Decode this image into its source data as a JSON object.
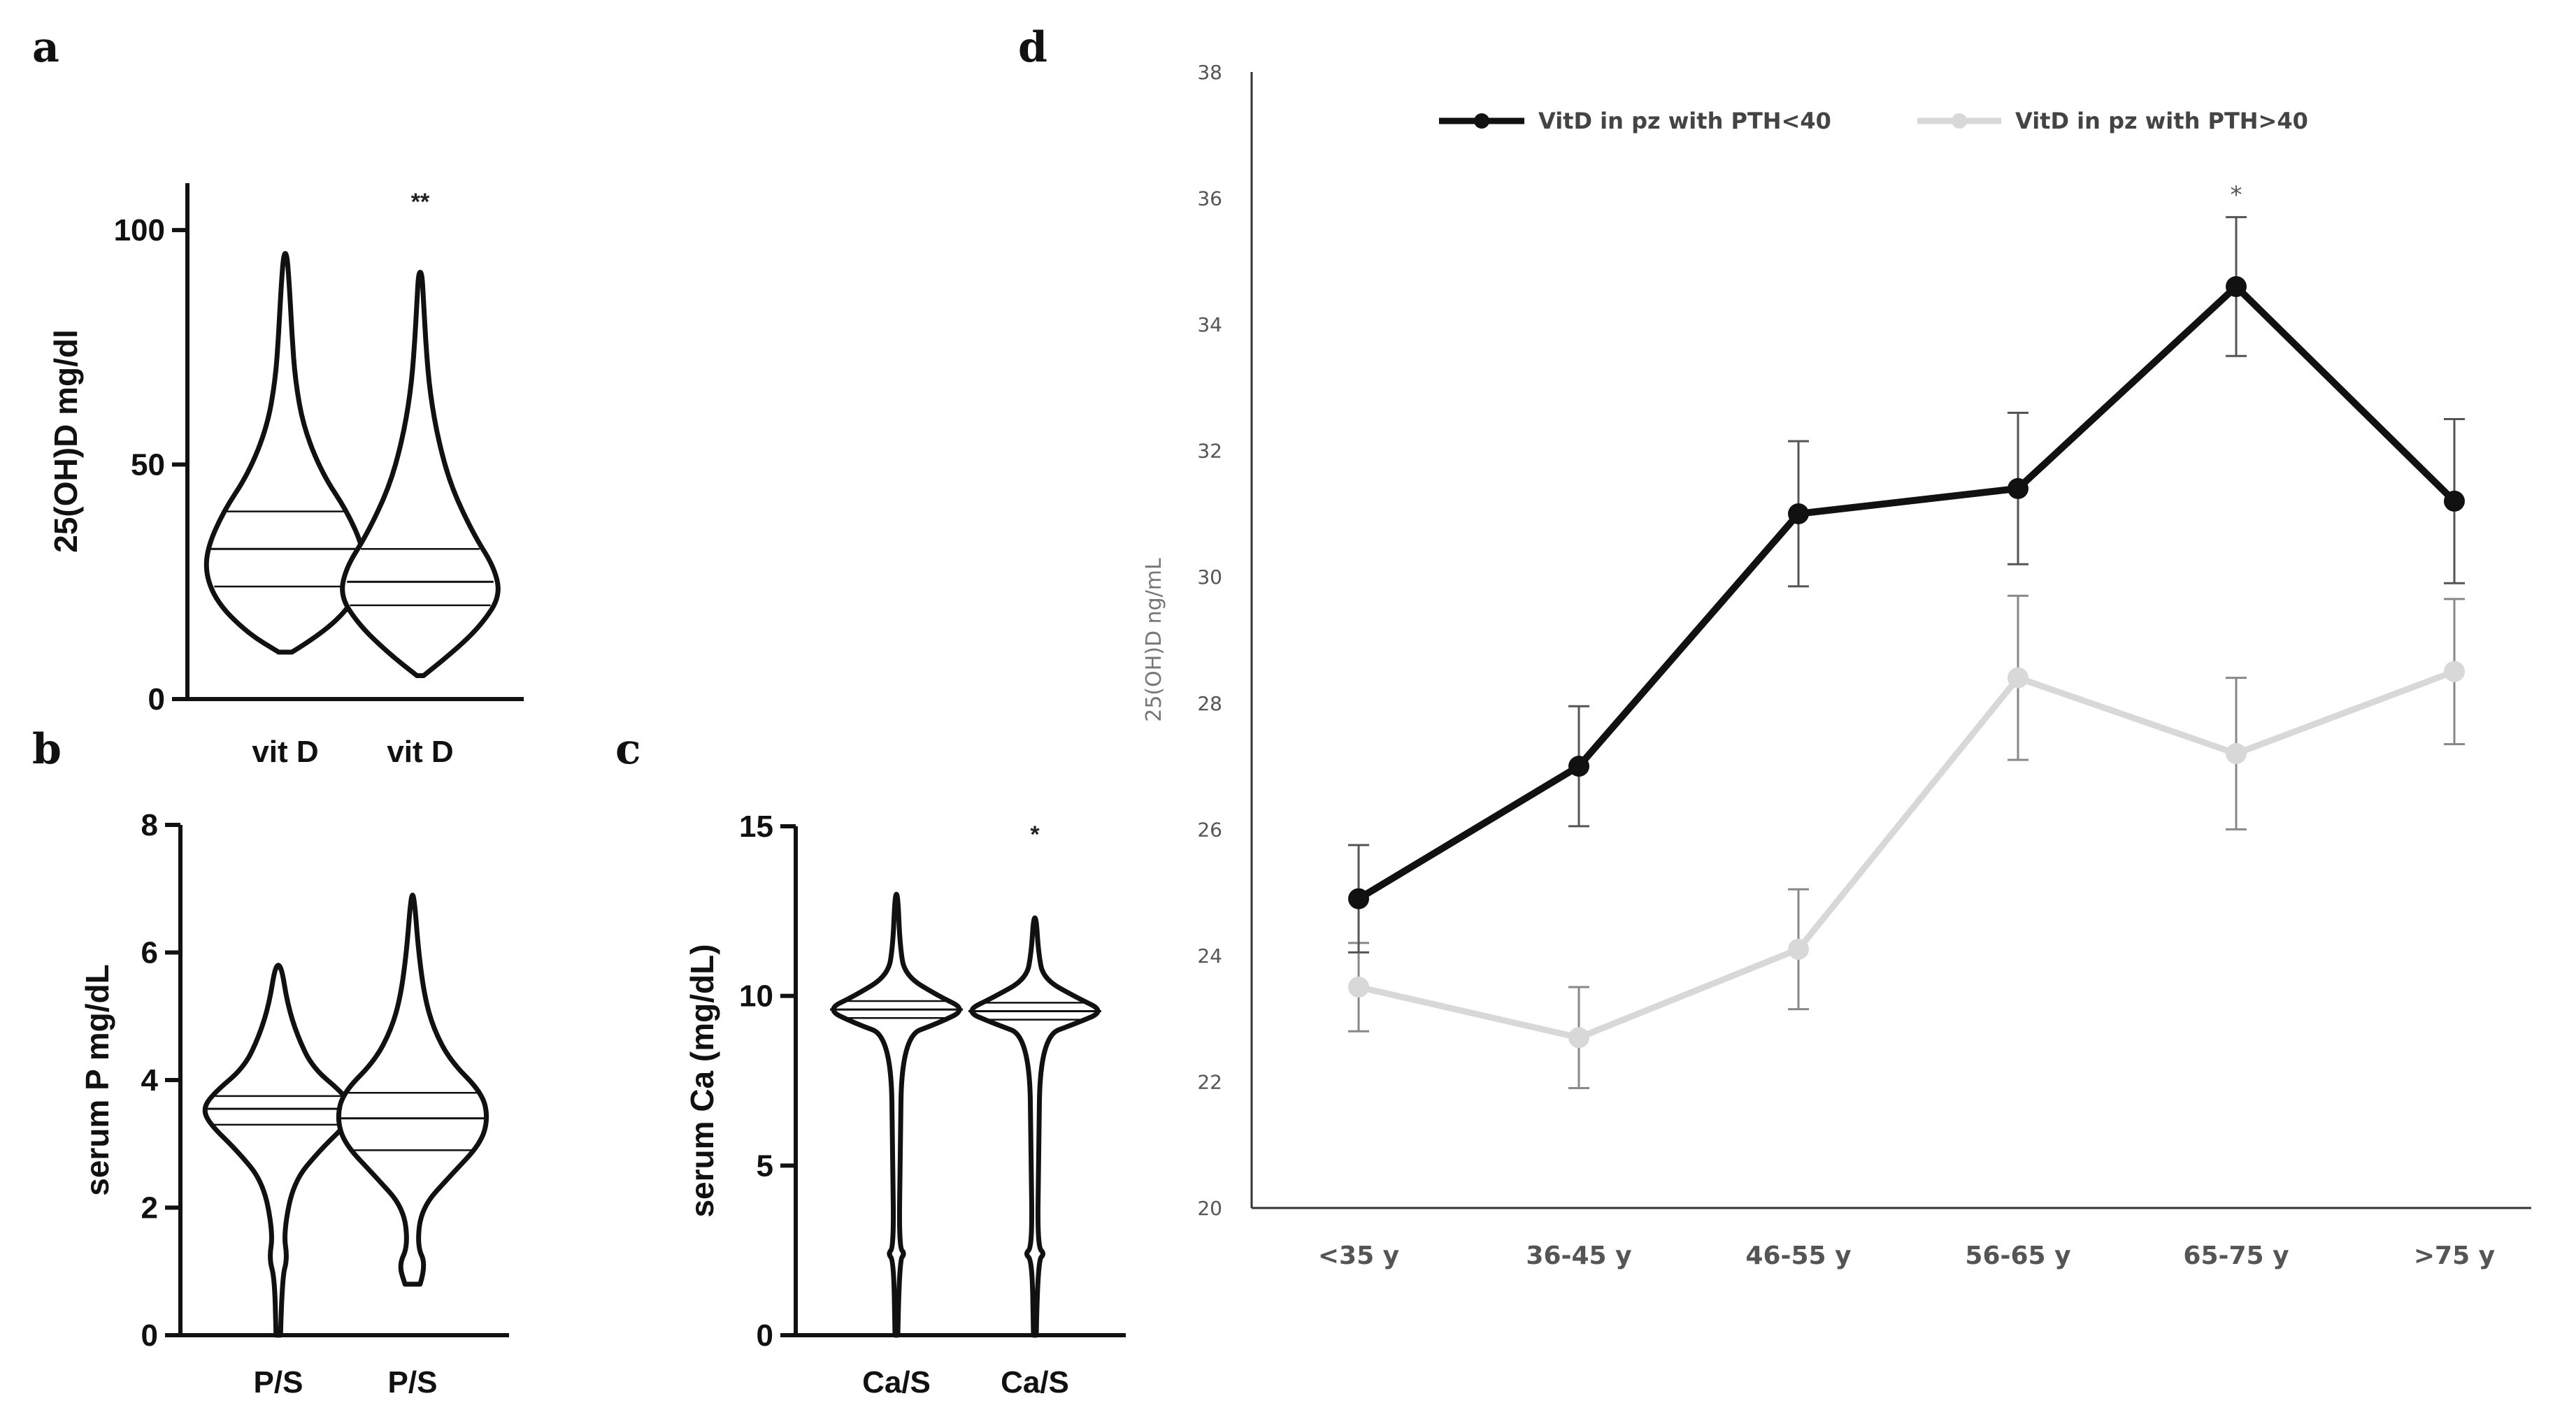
{
  "panels": {
    "a": "a",
    "b": "b",
    "c": "c",
    "d": "d"
  },
  "chart_data": [
    {
      "id": "a",
      "type": "violin",
      "ylabel": "25(OH)D mg/dl",
      "ylim": [
        0,
        110
      ],
      "yticks": [
        0,
        50,
        100
      ],
      "categories": [
        "vit D",
        "vit D"
      ],
      "significance": [
        "",
        "**"
      ],
      "violins": [
        {
          "min": 10,
          "max": 95,
          "q1": 24,
          "median": 32,
          "q3": 40,
          "profile": [
            [
              10,
              0.08
            ],
            [
              14,
              0.45
            ],
            [
              20,
              0.8
            ],
            [
              26,
              0.96
            ],
            [
              32,
              0.95
            ],
            [
              40,
              0.75
            ],
            [
              48,
              0.45
            ],
            [
              58,
              0.22
            ],
            [
              68,
              0.12
            ],
            [
              78,
              0.08
            ],
            [
              88,
              0.05
            ],
            [
              95,
              0.02
            ]
          ]
        },
        {
          "min": 5,
          "max": 91,
          "q1": 20,
          "median": 25,
          "q3": 32,
          "profile": [
            [
              5,
              0.04
            ],
            [
              10,
              0.4
            ],
            [
              16,
              0.75
            ],
            [
              22,
              0.97
            ],
            [
              28,
              0.9
            ],
            [
              35,
              0.65
            ],
            [
              45,
              0.38
            ],
            [
              55,
              0.22
            ],
            [
              65,
              0.12
            ],
            [
              75,
              0.07
            ],
            [
              85,
              0.04
            ],
            [
              91,
              0.02
            ]
          ]
        }
      ]
    },
    {
      "id": "b",
      "type": "violin",
      "ylabel": "serum P mg/dL",
      "ylim": [
        0,
        8
      ],
      "yticks": [
        0,
        2,
        4,
        6,
        8
      ],
      "categories": [
        "P/S",
        "P/S"
      ],
      "significance": [
        "",
        ""
      ],
      "violins": [
        {
          "min": 0,
          "max": 5.8,
          "q1": 3.3,
          "median": 3.55,
          "q3": 3.75,
          "profile": [
            [
              0,
              0.03
            ],
            [
              0.9,
              0.05
            ],
            [
              1.2,
              0.12
            ],
            [
              1.6,
              0.07
            ],
            [
              2.4,
              0.2
            ],
            [
              2.9,
              0.55
            ],
            [
              3.3,
              0.9
            ],
            [
              3.55,
              1.0
            ],
            [
              3.8,
              0.85
            ],
            [
              4.2,
              0.45
            ],
            [
              4.7,
              0.25
            ],
            [
              5.2,
              0.12
            ],
            [
              5.8,
              0.04
            ]
          ]
        },
        {
          "min": 0.8,
          "max": 6.9,
          "q1": 2.9,
          "median": 3.4,
          "q3": 3.8,
          "profile": [
            [
              0.8,
              0.1
            ],
            [
              1.1,
              0.18
            ],
            [
              1.4,
              0.06
            ],
            [
              2.0,
              0.12
            ],
            [
              2.5,
              0.5
            ],
            [
              3.0,
              0.9
            ],
            [
              3.4,
              1.0
            ],
            [
              3.8,
              0.92
            ],
            [
              4.3,
              0.5
            ],
            [
              4.8,
              0.28
            ],
            [
              5.3,
              0.16
            ],
            [
              6.0,
              0.08
            ],
            [
              6.9,
              0.02
            ]
          ]
        }
      ]
    },
    {
      "id": "c",
      "type": "violin",
      "ylabel": "serum Ca (mg/dL)",
      "ylim": [
        0,
        15
      ],
      "yticks": [
        0,
        5,
        10,
        15
      ],
      "categories": [
        "Ca/S",
        "Ca/S"
      ],
      "significance": [
        "",
        "*"
      ],
      "violins": [
        {
          "min": 0,
          "max": 13,
          "q1": 9.35,
          "median": 9.6,
          "q3": 9.85,
          "profile": [
            [
              0,
              0.02
            ],
            [
              2.2,
              0.04
            ],
            [
              2.4,
              0.12
            ],
            [
              2.6,
              0.04
            ],
            [
              5,
              0.05
            ],
            [
              8.8,
              0.08
            ],
            [
              9.2,
              0.6
            ],
            [
              9.6,
              1.0
            ],
            [
              10.0,
              0.6
            ],
            [
              10.6,
              0.12
            ],
            [
              11.5,
              0.05
            ],
            [
              13,
              0.02
            ]
          ]
        },
        {
          "min": 0,
          "max": 12.3,
          "q1": 9.3,
          "median": 9.55,
          "q3": 9.8,
          "profile": [
            [
              0,
              0.02
            ],
            [
              2.2,
              0.04
            ],
            [
              2.4,
              0.14
            ],
            [
              2.6,
              0.04
            ],
            [
              5,
              0.05
            ],
            [
              8.8,
              0.08
            ],
            [
              9.2,
              0.6
            ],
            [
              9.55,
              1.0
            ],
            [
              9.95,
              0.6
            ],
            [
              10.5,
              0.12
            ],
            [
              11.3,
              0.05
            ],
            [
              12.3,
              0.02
            ]
          ]
        }
      ]
    },
    {
      "id": "d",
      "type": "line",
      "ylabel": "25(OH)D ng/mL",
      "ylim": [
        20,
        38
      ],
      "yticks": [
        20,
        22,
        24,
        26,
        28,
        30,
        32,
        34,
        36,
        38
      ],
      "categories": [
        "<35 y",
        "36-45 y",
        "46-55 y",
        "56-65 y",
        "65-75 y",
        ">75 y"
      ],
      "significance": [
        "",
        "",
        "",
        "",
        "*",
        ""
      ],
      "series": [
        {
          "name": "VitD in pz with PTH<40",
          "color": "#111111",
          "values": [
            24.9,
            27.0,
            31.0,
            31.4,
            34.6,
            31.2
          ],
          "err": [
            0.85,
            0.95,
            1.15,
            1.2,
            1.1,
            1.3
          ]
        },
        {
          "name": "VitD in pz with PTH>40",
          "color": "#d8d8d8",
          "values": [
            23.5,
            22.7,
            24.1,
            28.4,
            27.2,
            28.5
          ],
          "err": [
            0.7,
            0.8,
            0.95,
            1.3,
            1.2,
            1.15
          ]
        }
      ]
    }
  ]
}
